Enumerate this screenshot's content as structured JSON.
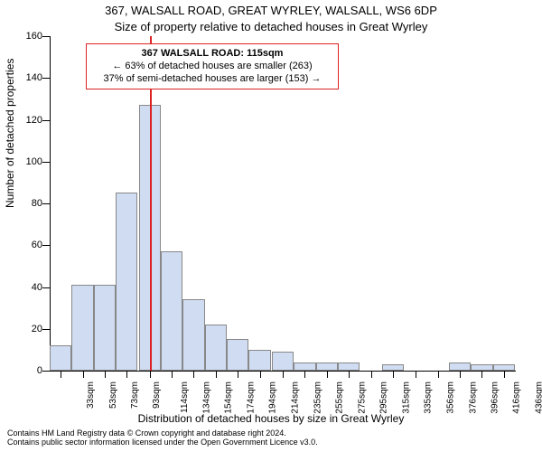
{
  "title_line1": "367, WALSALL ROAD, GREAT WYRLEY, WALSALL, WS6 6DP",
  "title_line2": "Size of property relative to detached houses in Great Wyrley",
  "ylabel": "Number of detached properties",
  "xlabel": "Distribution of detached houses by size in Great Wyrley",
  "footer_line1": "Contains HM Land Registry data © Crown copyright and database right 2024.",
  "footer_line2": "Contains public sector information licensed under the Open Government Licence v3.0.",
  "chart": {
    "type": "histogram",
    "xlim": [
      23,
      446
    ],
    "ylim": [
      0,
      160
    ],
    "yticks": [
      0,
      20,
      40,
      60,
      80,
      100,
      120,
      140,
      160
    ],
    "xtick_values": [
      33,
      53,
      73,
      93,
      114,
      134,
      154,
      174,
      194,
      214,
      235,
      255,
      275,
      295,
      315,
      335,
      356,
      376,
      396,
      416,
      436
    ],
    "xtick_labels": [
      "33sqm",
      "53sqm",
      "73sqm",
      "93sqm",
      "114sqm",
      "134sqm",
      "154sqm",
      "174sqm",
      "194sqm",
      "214sqm",
      "235sqm",
      "255sqm",
      "275sqm",
      "295sqm",
      "315sqm",
      "335sqm",
      "356sqm",
      "376sqm",
      "396sqm",
      "416sqm",
      "436sqm"
    ],
    "bars": [
      {
        "x": 33,
        "y": 12
      },
      {
        "x": 53,
        "y": 41
      },
      {
        "x": 73,
        "y": 41
      },
      {
        "x": 93,
        "y": 85
      },
      {
        "x": 114,
        "y": 127
      },
      {
        "x": 134,
        "y": 57
      },
      {
        "x": 154,
        "y": 34
      },
      {
        "x": 174,
        "y": 22
      },
      {
        "x": 194,
        "y": 15
      },
      {
        "x": 214,
        "y": 10
      },
      {
        "x": 235,
        "y": 9
      },
      {
        "x": 255,
        "y": 4
      },
      {
        "x": 275,
        "y": 4
      },
      {
        "x": 295,
        "y": 4
      },
      {
        "x": 315,
        "y": 0
      },
      {
        "x": 335,
        "y": 3
      },
      {
        "x": 356,
        "y": 0
      },
      {
        "x": 376,
        "y": 0
      },
      {
        "x": 396,
        "y": 4
      },
      {
        "x": 416,
        "y": 3
      },
      {
        "x": 436,
        "y": 3
      }
    ],
    "bar_fill": "#cfdcf2",
    "bar_border": "#888888",
    "bar_width_value": 20,
    "marker_x": 115,
    "marker_color": "#dd2222",
    "background_color": "#ffffff",
    "tick_fontsize": 11,
    "label_fontsize": 12
  },
  "annotation": {
    "line1": "367 WALSALL ROAD: 115sqm",
    "line2": "← 63% of detached houses are smaller (263)",
    "line3": "37% of semi-detached houses are larger (153) →",
    "border_color": "#dd2222",
    "background": "#ffffff",
    "fontsize": 11
  }
}
